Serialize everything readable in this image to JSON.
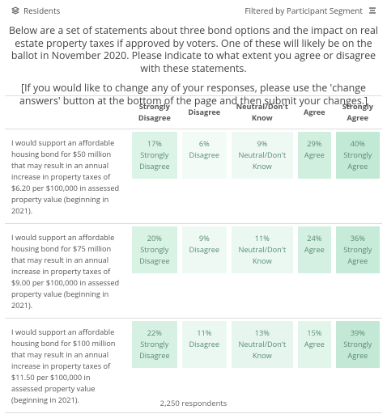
{
  "header": {
    "title": "Residents",
    "filter": "Filtered by Participant Segment"
  },
  "intro": [
    "Below are a set of statements about three bond options and the impact on real estate property taxes if approved by voters. One of these will likely be on the ballot in November 2020. Please indicate to what extent you agree or disagree with these statements.",
    "[If you would like to change any of your responses, please use the 'change answers' button at the bottom of the page and then submit your changes.]"
  ],
  "table": {
    "columns": [
      "Strongly Disagree",
      "Disagree",
      "Neutral/Don't Know",
      "Agree",
      "Strongly Agree"
    ],
    "rows": [
      {
        "statement": "I would support an affordable housing bond for $50 million that may result in an annual increase in property taxes of $6.20 per $100,000 in assessed property value (beginning in 2021).",
        "cells": [
          {
            "pct": "17%",
            "label": "Strongly Disagree",
            "color": "#dcf3e7"
          },
          {
            "pct": "6%",
            "label": "Disagree",
            "color": "#f3fbf7"
          },
          {
            "pct": "9%",
            "label": "Neutral/Don't Know",
            "color": "#eef9f3"
          },
          {
            "pct": "29%",
            "label": "Agree",
            "color": "#d0efdf"
          },
          {
            "pct": "40%",
            "label": "Strongly Agree",
            "color": "#c2e9d5"
          }
        ]
      },
      {
        "statement": "I would support an affordable housing bond for $75 million that may result in an annual increase in property taxes of $9.00 per $100,000 in assessed property value (beginning in 2021).",
        "cells": [
          {
            "pct": "20%",
            "label": "Strongly Disagree",
            "color": "#d8f2e4"
          },
          {
            "pct": "9%",
            "label": "Disagree",
            "color": "#eef9f3"
          },
          {
            "pct": "11%",
            "label": "Neutral/Don't Know",
            "color": "#eaf8f1"
          },
          {
            "pct": "24%",
            "label": "Agree",
            "color": "#d4f0e2"
          },
          {
            "pct": "36%",
            "label": "Strongly Agree",
            "color": "#c6ebd8"
          }
        ]
      },
      {
        "statement": "I would support an affordable housing bond for $100 million that may result in an annual increase in property taxes of $11.50 per $100,000 in assessed property value (beginning in 2021).",
        "cells": [
          {
            "pct": "22%",
            "label": "Strongly Disagree",
            "color": "#d6f1e3"
          },
          {
            "pct": "11%",
            "label": "Disagree",
            "color": "#eaf8f1"
          },
          {
            "pct": "13%",
            "label": "Neutral/Don't Know",
            "color": "#e6f6ee"
          },
          {
            "pct": "15%",
            "label": "Agree",
            "color": "#e2f5eb"
          },
          {
            "pct": "39%",
            "label": "Strongly Agree",
            "color": "#c3e9d6"
          }
        ]
      }
    ]
  },
  "footer": "2,250 respondents"
}
